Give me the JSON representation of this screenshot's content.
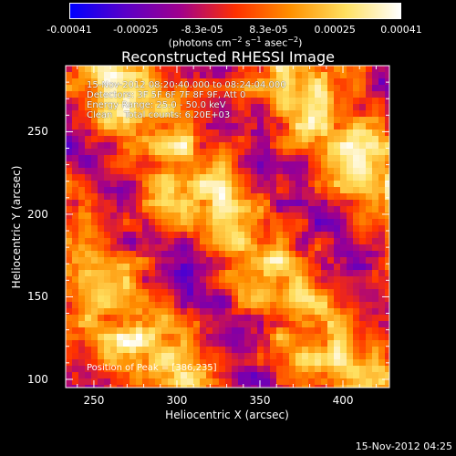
{
  "chart_data": {
    "type": "heatmap",
    "title": "Reconstructed RHESSI Image",
    "xlabel": "Heliocentric X (arcsec)",
    "ylabel": "Heliocentric Y (arcsec)",
    "xlim": [
      233,
      428
    ],
    "ylim": [
      95,
      290
    ],
    "x_ticks": [
      "250",
      "300",
      "350",
      "400"
    ],
    "x_tick_values": [
      250,
      300,
      350,
      400
    ],
    "y_ticks": [
      "100",
      "150",
      "200",
      "250"
    ],
    "y_tick_values": [
      100,
      150,
      200,
      250
    ],
    "colorbar": {
      "ticks": [
        "-0.00041",
        "-0.00025",
        "-8.3e-05",
        "8.3e-05",
        "0.00025",
        "0.00041"
      ],
      "min": -0.00041,
      "max": 0.00041,
      "unit_text": "photons cm",
      "colors": [
        "#0000ff",
        "#5a00c8",
        "#a0008c",
        "#ff3000",
        "#ff9000",
        "#ffe060",
        "#ffffff"
      ]
    },
    "annotations": {
      "line1": "15-Nov-2012 08:20:40.000 to 08:24:04.000",
      "line2": "Detectors: 3F 5F 6F 7F 8F 9F, Att 0",
      "line3": "Energy Range: 25.0 - 50.0 keV",
      "line4": "Clean    Total counts: 6.20E+03",
      "peak": "Position of Peak = [386,235]"
    },
    "grid": false,
    "peak_position": [
      386,
      235
    ]
  },
  "footer": "15-Nov-2012 04:25"
}
